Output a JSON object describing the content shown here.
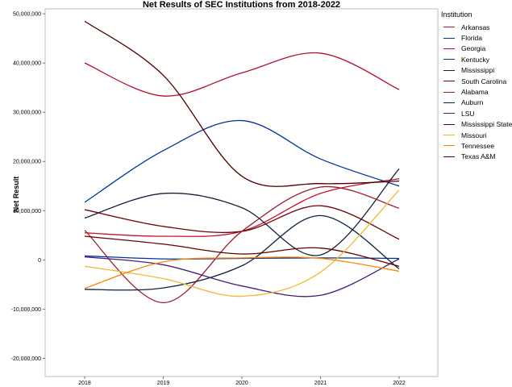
{
  "chart_data": {
    "type": "line",
    "title": "Net Results of SEC Institutions from 2018-2022",
    "xlabel": "",
    "ylabel": "Net Result",
    "x": [
      "2018",
      "2019",
      "2020",
      "2021",
      "2022"
    ],
    "ylim": [
      -23700000,
      51000000
    ],
    "yticks": [
      -20000000,
      -10000000,
      0,
      10000000,
      20000000,
      30000000,
      40000000,
      50000000
    ],
    "ytick_labels": [
      "-20,000,000",
      "-10,000,000",
      "0",
      "10,000,000",
      "20,000,000",
      "30,000,000",
      "40,000,000",
      "50,000,000"
    ],
    "grid": false,
    "legend_title": "Institution",
    "legend_position": "right",
    "series": [
      {
        "name": "Arkansas",
        "color": "#c8102e",
        "values": [
          5500000,
          4800000,
          5800000,
          13500000,
          16500000
        ]
      },
      {
        "name": "Florida",
        "color": "#0033a0",
        "values": [
          11700000,
          22200000,
          28300000,
          20500000,
          15000000
        ]
      },
      {
        "name": "Georgia",
        "color": "#ba0c2f",
        "values": [
          40000000,
          33300000,
          38000000,
          42000000,
          34600000
        ]
      },
      {
        "name": "Kentucky",
        "color": "#0033a0",
        "values": [
          800000,
          200000,
          300000,
          400000,
          300000
        ]
      },
      {
        "name": "Mississippi",
        "color": "#14213d",
        "values": [
          8500000,
          13500000,
          10600000,
          1000000,
          18500000
        ]
      },
      {
        "name": "South Carolina",
        "color": "#73000a",
        "values": [
          10200000,
          6800000,
          5800000,
          11000000,
          4200000
        ]
      },
      {
        "name": "Alabama",
        "color": "#9e1b32",
        "values": [
          6000000,
          -8700000,
          5800000,
          14800000,
          10500000
        ]
      },
      {
        "name": "Auburn",
        "color": "#0c2340",
        "values": [
          -6000000,
          -5700000,
          -1200000,
          9000000,
          -1800000
        ]
      },
      {
        "name": "LSU",
        "color": "#461d7c",
        "values": [
          600000,
          -1000000,
          -5300000,
          -7200000,
          200000
        ]
      },
      {
        "name": "Mississippi State",
        "color": "#660000",
        "values": [
          4800000,
          3200000,
          1200000,
          2400000,
          -1300000
        ]
      },
      {
        "name": "Missouri",
        "color": "#f1b82d",
        "values": [
          -1300000,
          -3800000,
          -7400000,
          -2500000,
          14200000
        ]
      },
      {
        "name": "Tennessee",
        "color": "#ff8200",
        "values": [
          -5800000,
          -400000,
          400000,
          300000,
          -2300000
        ]
      },
      {
        "name": "Texas A&M",
        "color": "#500000",
        "values": [
          48500000,
          37500000,
          17000000,
          15500000,
          16000000
        ]
      }
    ]
  }
}
